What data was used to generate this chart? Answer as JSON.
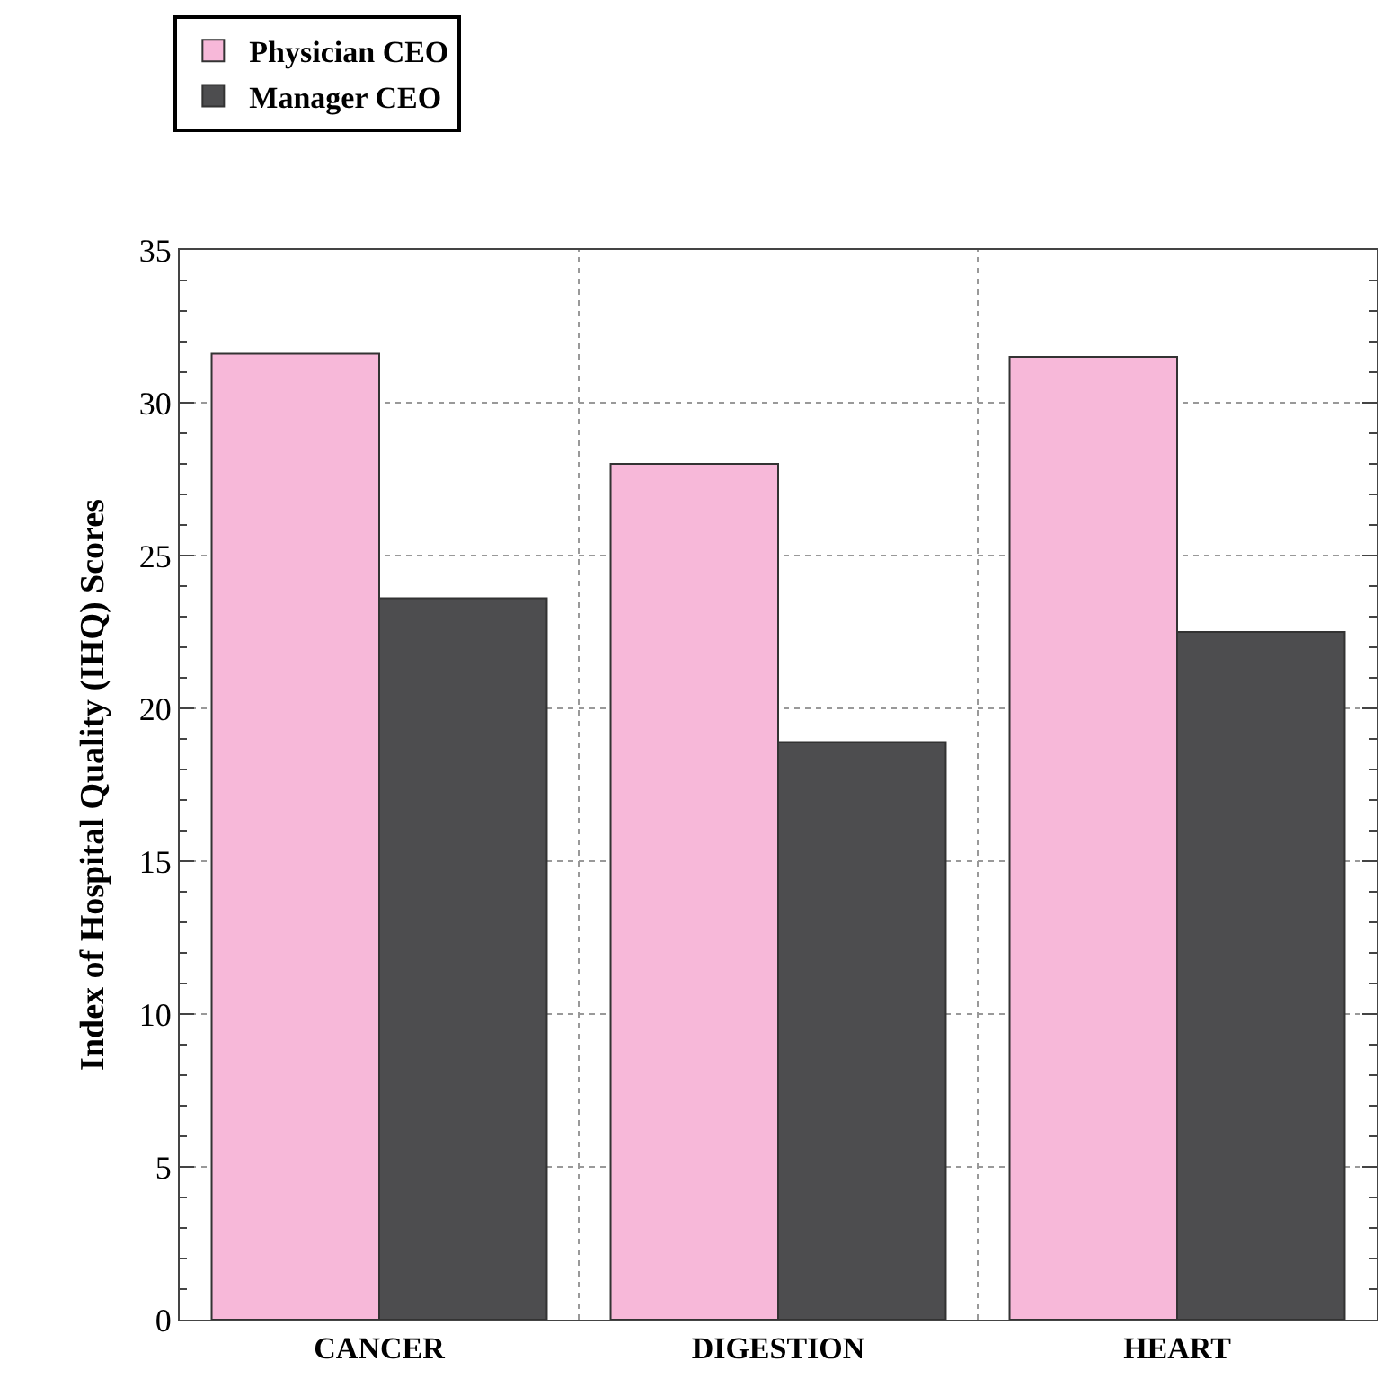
{
  "chart_data": {
    "type": "bar",
    "ylabel": "Index of Hospital Quality (IHQ) Scores",
    "categories": [
      "CANCER",
      "DIGESTION",
      "HEART"
    ],
    "series": [
      {
        "name": "Physician CEO",
        "color": "#f7b8d9",
        "values": [
          31.6,
          28.0,
          31.5
        ]
      },
      {
        "name": "Manager CEO",
        "color": "#4d4d4f",
        "values": [
          23.6,
          18.9,
          22.5
        ]
      }
    ],
    "ylim": [
      0,
      35
    ],
    "yticks": [
      0,
      5,
      10,
      15,
      20,
      25,
      30,
      35
    ],
    "grid": true,
    "legend": "top left"
  }
}
